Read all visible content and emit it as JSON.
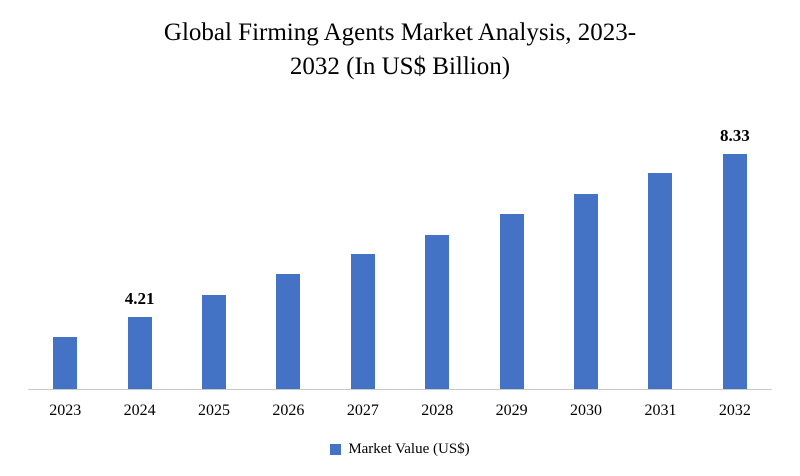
{
  "chart_data": {
    "type": "bar",
    "title": "Global Firming Agents Market Analysis, 2023-2032 (In US$ Billion)",
    "title_lines": [
      "Global Firming Agents Market Analysis, 2023-",
      "2032 (In US$ Billion)"
    ],
    "categories": [
      "2023",
      "2024",
      "2025",
      "2026",
      "2027",
      "2028",
      "2029",
      "2030",
      "2031",
      "2032"
    ],
    "series": [
      {
        "name": "Market Value (US$)",
        "values": [
          3.7,
          4.21,
          4.76,
          5.29,
          5.8,
          6.28,
          6.82,
          7.33,
          7.86,
          8.33
        ]
      }
    ],
    "data_labels": [
      "",
      "4.21",
      "",
      "",
      "",
      "",
      "",
      "",
      "",
      "8.33"
    ],
    "xlabel": "",
    "ylabel": "",
    "ylim": [
      2.35,
      9
    ],
    "grid": false,
    "legend": {
      "position": "bottom",
      "entries": [
        "Market Value (US$)"
      ]
    },
    "colors": {
      "bar": "#4472C4",
      "axis_line": "#C9C9C9",
      "text": "#000000"
    }
  }
}
